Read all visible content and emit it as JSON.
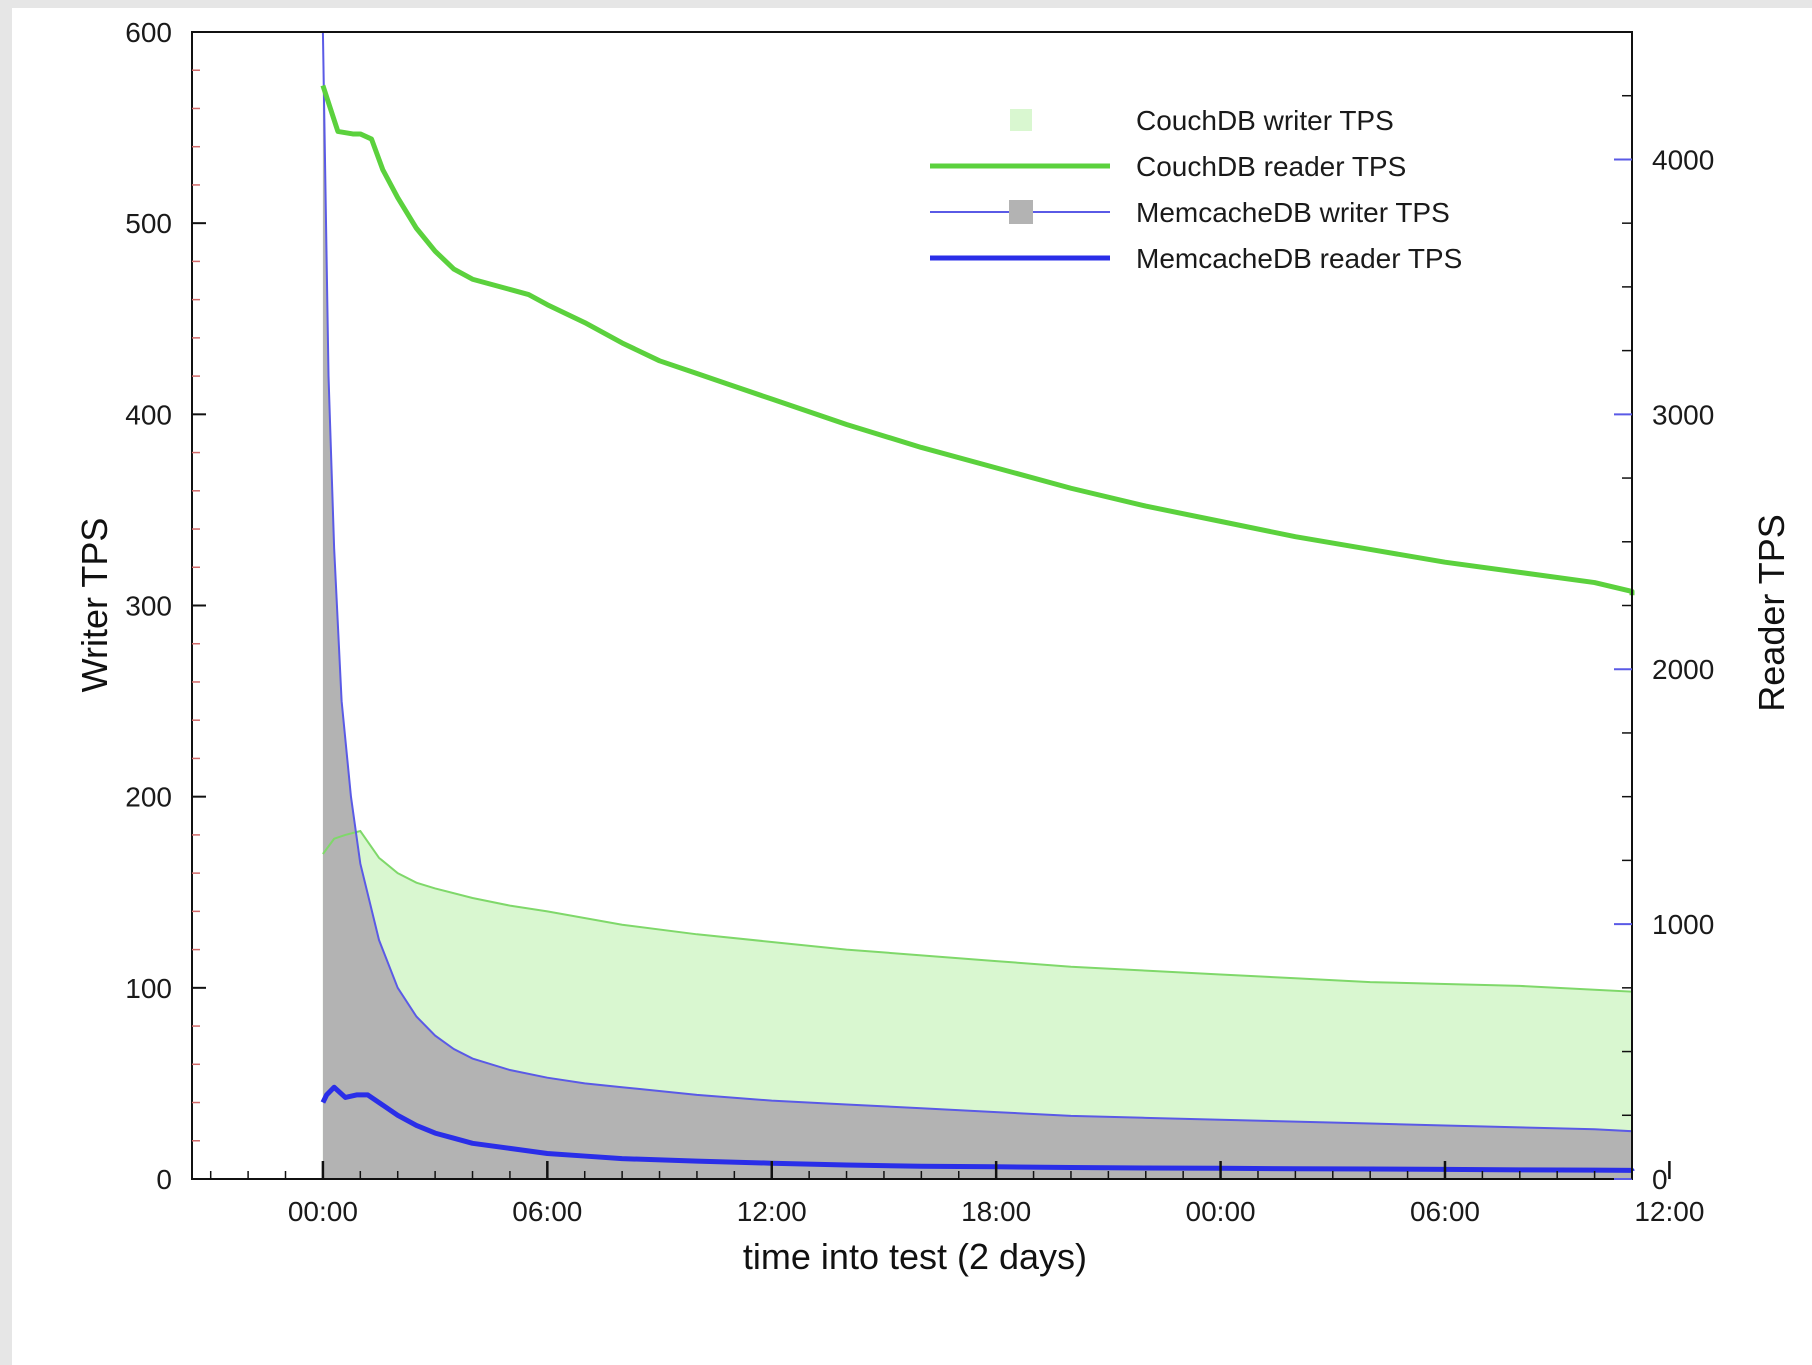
{
  "chart_data": {
    "type": "area",
    "xlabel": "time into test (2 days)",
    "ylabel_left": "Writer TPS",
    "ylabel_right": "Reader TPS",
    "x_range_hours": [
      -3.5,
      35
    ],
    "x_ticks": [
      {
        "hours": 0,
        "label": "00:00"
      },
      {
        "hours": 6,
        "label": "06:00"
      },
      {
        "hours": 12,
        "label": "12:00"
      },
      {
        "hours": 18,
        "label": "18:00"
      },
      {
        "hours": 24,
        "label": "00:00"
      },
      {
        "hours": 30,
        "label": "06:00"
      },
      {
        "hours": 36,
        "label": "12:00"
      }
    ],
    "y_left": {
      "range": [
        0,
        600
      ],
      "ticks": [
        "0",
        "100",
        "200",
        "300",
        "400",
        "500",
        "600"
      ]
    },
    "y_right": {
      "range": [
        0,
        4500
      ],
      "ticks": [
        "0",
        "1000",
        "2000",
        "3000",
        "4000"
      ]
    },
    "legend_position": "top-right",
    "series": [
      {
        "name": "CouchDB writer TPS",
        "axis": "left",
        "style": "area",
        "color": "#7fd86a",
        "fill": "#d9f7d0",
        "x": [
          0,
          0.3,
          0.6,
          1,
          1.5,
          2,
          2.5,
          3,
          4,
          5,
          6,
          8,
          10,
          12,
          14,
          16,
          18,
          20,
          22,
          24,
          26,
          28,
          30,
          32,
          34,
          35.7,
          37,
          37.1
        ],
        "y": [
          170,
          178,
          180,
          182,
          168,
          160,
          155,
          152,
          147,
          143,
          140,
          133,
          128,
          124,
          120,
          117,
          114,
          111,
          109,
          107,
          105,
          103,
          102,
          101,
          99,
          98,
          97,
          97
        ]
      },
      {
        "name": "CouchDB reader TPS",
        "axis": "right",
        "style": "line",
        "color": "#5bd13d",
        "x": [
          0,
          0.2,
          0.4,
          0.8,
          1,
          1.3,
          1.6,
          2,
          2.5,
          3,
          3.5,
          4,
          5,
          5.5,
          6,
          7,
          8,
          9,
          10,
          12,
          14,
          16,
          18,
          20,
          22,
          24,
          26,
          28,
          30,
          32,
          34,
          36,
          37.1
        ],
        "y": [
          4290,
          4200,
          4110,
          4100,
          4100,
          4080,
          3960,
          3850,
          3730,
          3640,
          3570,
          3530,
          3490,
          3470,
          3430,
          3360,
          3280,
          3210,
          3160,
          3060,
          2960,
          2870,
          2790,
          2710,
          2640,
          2580,
          2520,
          2470,
          2420,
          2380,
          2340,
          2305,
          2290
        ]
      },
      {
        "name": "MemcacheDB writer TPS",
        "axis": "left",
        "style": "area",
        "color": "#5a5ae6",
        "fill": "#b3b3b3",
        "x": [
          0,
          0.05,
          0.15,
          0.3,
          0.5,
          0.75,
          1,
          1.5,
          2,
          2.5,
          3,
          3.5,
          4,
          5,
          6,
          7,
          8,
          10,
          12,
          14,
          16,
          18,
          20,
          22,
          24,
          26,
          28,
          30,
          32,
          34,
          36,
          38,
          40,
          42
        ],
        "y": [
          600,
          540,
          420,
          330,
          250,
          200,
          165,
          125,
          100,
          85,
          75,
          68,
          63,
          57,
          53,
          50,
          48,
          44,
          41,
          39,
          37,
          35,
          33,
          32,
          31,
          30,
          29,
          28,
          27,
          26,
          25,
          24.5,
          24,
          24
        ]
      },
      {
        "name": "MemcacheDB reader TPS",
        "axis": "right",
        "style": "line",
        "color": "#2a2ee8",
        "x": [
          0,
          0.1,
          0.3,
          0.6,
          0.9,
          1.2,
          1.5,
          2,
          2.5,
          3,
          3.5,
          4,
          5,
          6,
          7,
          8,
          10,
          12,
          14,
          16,
          18,
          20,
          22,
          24,
          26,
          28,
          30,
          32,
          34,
          36,
          38,
          40,
          42
        ],
        "y": [
          300,
          330,
          360,
          320,
          330,
          330,
          300,
          250,
          210,
          180,
          160,
          140,
          120,
          100,
          90,
          80,
          70,
          62,
          55,
          50,
          48,
          45,
          43,
          42,
          40,
          39,
          38,
          36,
          35,
          34,
          33,
          32,
          32
        ]
      }
    ]
  }
}
